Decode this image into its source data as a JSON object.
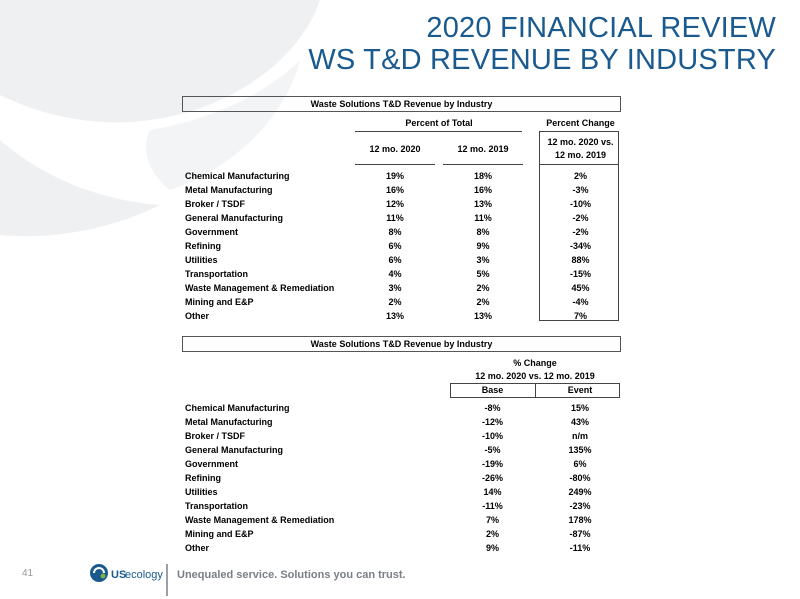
{
  "title_line1": "2020 FINANCIAL REVIEW",
  "title_line2": "WS T&D REVENUE BY INDUSTRY",
  "table1": {
    "title": "Waste Solutions T&D Revenue by Industry",
    "group_percent_total": "Percent of Total",
    "group_percent_change": "Percent Change",
    "col_2020": "12 mo. 2020",
    "col_2019": "12 mo. 2019",
    "col_change_line1": "12 mo. 2020 vs.",
    "col_change_line2": "12 mo. 2019",
    "rows": [
      {
        "label": "Chemical Manufacturing",
        "v2020": "19%",
        "v2019": "18%",
        "chg": "2%"
      },
      {
        "label": "Metal Manufacturing",
        "v2020": "16%",
        "v2019": "16%",
        "chg": "-3%"
      },
      {
        "label": "Broker / TSDF",
        "v2020": "12%",
        "v2019": "13%",
        "chg": "-10%"
      },
      {
        "label": "General Manufacturing",
        "v2020": "11%",
        "v2019": "11%",
        "chg": "-2%"
      },
      {
        "label": "Government",
        "v2020": "8%",
        "v2019": "8%",
        "chg": "-2%"
      },
      {
        "label": "Refining",
        "v2020": "6%",
        "v2019": "9%",
        "chg": "-34%"
      },
      {
        "label": "Utilities",
        "v2020": "6%",
        "v2019": "3%",
        "chg": "88%"
      },
      {
        "label": "Transportation",
        "v2020": "4%",
        "v2019": "5%",
        "chg": "-15%"
      },
      {
        "label": "Waste Management & Remediation",
        "v2020": "3%",
        "v2019": "2%",
        "chg": "45%"
      },
      {
        "label": "Mining and E&P",
        "v2020": "2%",
        "v2019": "2%",
        "chg": "-4%"
      },
      {
        "label": "Other",
        "v2020": "13%",
        "v2019": "13%",
        "chg": "7%"
      }
    ]
  },
  "table2": {
    "title": "Waste Solutions T&D Revenue by Industry",
    "group_line1": "% Change",
    "group_line2": "12 mo. 2020 vs. 12 mo. 2019",
    "col_base": "Base",
    "col_event": "Event",
    "rows": [
      {
        "label": "Chemical Manufacturing",
        "base": "-8%",
        "event": "15%"
      },
      {
        "label": "Metal Manufacturing",
        "base": "-12%",
        "event": "43%"
      },
      {
        "label": "Broker / TSDF",
        "base": "-10%",
        "event": "n/m"
      },
      {
        "label": "General Manufacturing",
        "base": "-5%",
        "event": "135%"
      },
      {
        "label": "Government",
        "base": "-19%",
        "event": "6%"
      },
      {
        "label": "Refining",
        "base": "-26%",
        "event": "-80%"
      },
      {
        "label": "Utilities",
        "base": "14%",
        "event": "249%"
      },
      {
        "label": "Transportation",
        "base": "-11%",
        "event": "-23%"
      },
      {
        "label": "Waste Management & Remediation",
        "base": "7%",
        "event": "178%"
      },
      {
        "label": "Mining and E&P",
        "base": "2%",
        "event": "-87%"
      },
      {
        "label": "Other",
        "base": "9%",
        "event": "-11%"
      }
    ]
  },
  "footer": {
    "page_number": "41",
    "logo_text_us": "US",
    "logo_text_ecology": "ecology",
    "tagline": "Unequaled service. Solutions you can trust."
  }
}
